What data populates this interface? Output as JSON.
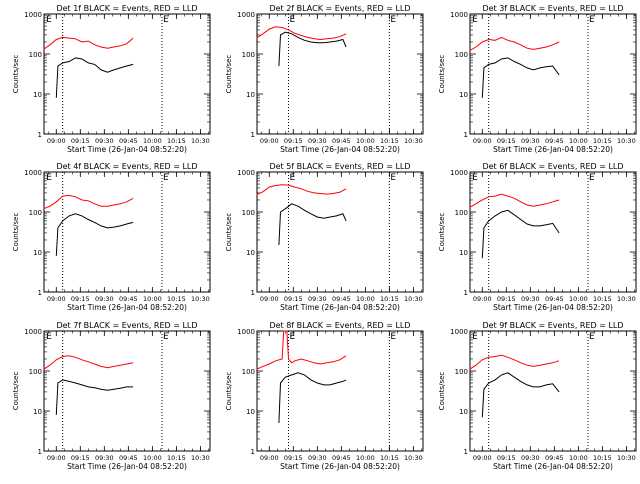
{
  "chart_data": [
    {
      "type": "line",
      "title": "Det 1f BLACK = Events, RED = LLD",
      "xlabel": "Start Time (26-Jan-04 08:52:20)",
      "ylabel": "Counts/sec",
      "ylim": [
        1,
        1000
      ],
      "yscale": "log",
      "yticks": [
        "1",
        "10",
        "100",
        "1000"
      ],
      "xticks": [
        "09:00",
        "09:15",
        "09:30",
        "09:45",
        "10:00",
        "10:15",
        "10:30"
      ],
      "xlim": [
        "08:52:20",
        "10:36:00"
      ],
      "vlines": [
        "09:04",
        "10:06"
      ],
      "markers": [
        {
          "label": "E",
          "x": "08:53"
        },
        {
          "label": "E",
          "x": "10:06"
        }
      ],
      "series": [
        {
          "color": "#ff0000",
          "x": [
            "08:52",
            "08:56",
            "09:00",
            "09:04",
            "09:08",
            "09:12",
            "09:16",
            "09:20",
            "09:24",
            "09:28",
            "09:32",
            "09:36",
            "09:40",
            "09:44",
            "09:48"
          ],
          "values": [
            130,
            170,
            230,
            260,
            250,
            240,
            200,
            210,
            170,
            150,
            140,
            150,
            160,
            180,
            250
          ]
        },
        {
          "color": "#000000",
          "x": [
            "09:00",
            "09:01",
            "09:04",
            "09:08",
            "09:12",
            "09:16",
            "09:20",
            "09:24",
            "09:28",
            "09:32",
            "09:36",
            "09:40",
            "09:44",
            "09:48"
          ],
          "values": [
            8,
            50,
            60,
            65,
            80,
            75,
            60,
            55,
            40,
            35,
            40,
            45,
            50,
            55
          ]
        }
      ]
    },
    {
      "type": "line",
      "title": "Det 2f BLACK = Events, RED = LLD",
      "xlabel": "Start Time (26-Jan-04 08:52:20)",
      "ylabel": "Counts/sec",
      "ylim": [
        1,
        1000
      ],
      "yscale": "log",
      "yticks": [
        "1",
        "10",
        "100",
        "1000"
      ],
      "xticks": [
        "09:00",
        "09:15",
        "09:30",
        "09:45",
        "10:00",
        "10:15",
        "10:30"
      ],
      "xlim": [
        "08:52:20",
        "10:36:00"
      ],
      "vlines": [
        "09:12",
        "10:15"
      ],
      "markers": [
        {
          "label": "E",
          "x": "09:12"
        },
        {
          "label": "E",
          "x": "10:15"
        }
      ],
      "series": [
        {
          "color": "#ff0000",
          "x": [
            "08:52",
            "08:56",
            "09:00",
            "09:04",
            "09:08",
            "09:12",
            "09:16",
            "09:20",
            "09:24",
            "09:28",
            "09:32",
            "09:36",
            "09:40",
            "09:44",
            "09:48"
          ],
          "values": [
            250,
            320,
            420,
            480,
            460,
            400,
            330,
            290,
            260,
            240,
            230,
            240,
            250,
            270,
            320
          ]
        },
        {
          "color": "#000000",
          "x": [
            "09:06",
            "09:07",
            "09:10",
            "09:14",
            "09:18",
            "09:22",
            "09:26",
            "09:30",
            "09:34",
            "09:38",
            "09:42",
            "09:46",
            "09:48"
          ],
          "values": [
            50,
            300,
            350,
            320,
            260,
            220,
            200,
            190,
            190,
            200,
            210,
            230,
            150
          ]
        }
      ]
    },
    {
      "type": "line",
      "title": "Det 3f BLACK = Events, RED = LLD",
      "xlabel": "Start Time (26-Jan-04 08:52:20)",
      "ylabel": "Counts/sec",
      "ylim": [
        1,
        1000
      ],
      "yscale": "log",
      "yticks": [
        "1",
        "10",
        "100",
        "1000"
      ],
      "xticks": [
        "09:00",
        "09:15",
        "09:30",
        "09:45",
        "10:00",
        "10:15",
        "10:30"
      ],
      "xlim": [
        "08:52:20",
        "10:36:00"
      ],
      "vlines": [
        "09:04",
        "10:06"
      ],
      "markers": [
        {
          "label": "E",
          "x": "08:53"
        },
        {
          "label": "E",
          "x": "10:06"
        }
      ],
      "series": [
        {
          "color": "#ff0000",
          "x": [
            "08:52",
            "08:56",
            "09:00",
            "09:04",
            "09:08",
            "09:12",
            "09:16",
            "09:20",
            "09:24",
            "09:28",
            "09:32",
            "09:36",
            "09:40",
            "09:44",
            "09:48"
          ],
          "values": [
            120,
            150,
            200,
            230,
            220,
            260,
            220,
            200,
            170,
            140,
            130,
            140,
            150,
            170,
            200
          ]
        },
        {
          "color": "#000000",
          "x": [
            "09:00",
            "09:01",
            "09:04",
            "09:08",
            "09:12",
            "09:16",
            "09:20",
            "09:24",
            "09:28",
            "09:32",
            "09:36",
            "09:40",
            "09:44",
            "09:48"
          ],
          "values": [
            8,
            45,
            55,
            60,
            75,
            80,
            65,
            55,
            45,
            40,
            45,
            48,
            50,
            30
          ]
        }
      ]
    },
    {
      "type": "line",
      "title": "Det 4f BLACK = Events, RED = LLD",
      "xlabel": "Start Time (26-Jan-04 08:52:20)",
      "ylabel": "Counts/sec",
      "ylim": [
        1,
        1000
      ],
      "yscale": "log",
      "yticks": [
        "1",
        "10",
        "100",
        "1000"
      ],
      "xticks": [
        "09:00",
        "09:15",
        "09:30",
        "09:45",
        "10:00",
        "10:15",
        "10:30"
      ],
      "xlim": [
        "08:52:20",
        "10:36:00"
      ],
      "vlines": [
        "09:04",
        "10:06"
      ],
      "markers": [
        {
          "label": "E",
          "x": "08:53"
        },
        {
          "label": "E",
          "x": "10:06"
        }
      ],
      "series": [
        {
          "color": "#ff0000",
          "x": [
            "08:52",
            "08:56",
            "09:00",
            "09:04",
            "09:08",
            "09:12",
            "09:16",
            "09:20",
            "09:24",
            "09:28",
            "09:32",
            "09:36",
            "09:40",
            "09:44",
            "09:48"
          ],
          "values": [
            120,
            140,
            180,
            250,
            260,
            240,
            200,
            190,
            160,
            140,
            140,
            150,
            160,
            180,
            220
          ]
        },
        {
          "color": "#000000",
          "x": [
            "09:00",
            "09:01",
            "09:04",
            "09:08",
            "09:12",
            "09:16",
            "09:20",
            "09:24",
            "09:28",
            "09:32",
            "09:36",
            "09:40",
            "09:44",
            "09:48"
          ],
          "values": [
            8,
            40,
            60,
            80,
            90,
            80,
            65,
            55,
            45,
            40,
            42,
            45,
            50,
            55
          ]
        }
      ]
    },
    {
      "type": "line",
      "title": "Det 5f BLACK = Events, RED = LLD",
      "xlabel": "Start Time (26-Jan-04 08:52:20)",
      "ylabel": "Counts/sec",
      "ylim": [
        1,
        1000
      ],
      "yscale": "log",
      "yticks": [
        "1",
        "10",
        "100",
        "1000"
      ],
      "xticks": [
        "09:00",
        "09:15",
        "09:30",
        "09:45",
        "10:00",
        "10:15",
        "10:30"
      ],
      "xlim": [
        "08:52:20",
        "10:36:00"
      ],
      "vlines": [
        "09:12",
        "10:15"
      ],
      "markers": [
        {
          "label": "E",
          "x": "09:12"
        },
        {
          "label": "E",
          "x": "10:15"
        }
      ],
      "series": [
        {
          "color": "#ff0000",
          "x": [
            "08:52",
            "08:56",
            "09:00",
            "09:04",
            "09:08",
            "09:12",
            "09:16",
            "09:20",
            "09:24",
            "09:28",
            "09:32",
            "09:36",
            "09:40",
            "09:44",
            "09:48"
          ],
          "values": [
            270,
            320,
            420,
            460,
            480,
            470,
            420,
            380,
            330,
            300,
            290,
            280,
            290,
            310,
            380
          ]
        },
        {
          "color": "#000000",
          "x": [
            "09:06",
            "09:07",
            "09:10",
            "09:14",
            "09:18",
            "09:22",
            "09:26",
            "09:30",
            "09:34",
            "09:38",
            "09:42",
            "09:46",
            "09:48"
          ],
          "values": [
            15,
            100,
            120,
            160,
            140,
            110,
            90,
            75,
            70,
            75,
            80,
            90,
            60
          ]
        }
      ]
    },
    {
      "type": "line",
      "title": "Det 6f BLACK = Events, RED = LLD",
      "xlabel": "Start Time (26-Jan-04 08:52:20)",
      "ylabel": "Counts/sec",
      "ylim": [
        1,
        1000
      ],
      "yscale": "log",
      "yticks": [
        "1",
        "10",
        "100",
        "1000"
      ],
      "xticks": [
        "09:00",
        "09:15",
        "09:30",
        "09:45",
        "10:00",
        "10:15",
        "10:30"
      ],
      "xlim": [
        "08:52:20",
        "10:36:00"
      ],
      "vlines": [
        "09:04",
        "10:06"
      ],
      "markers": [
        {
          "label": "E",
          "x": "08:53"
        },
        {
          "label": "E",
          "x": "10:06"
        }
      ],
      "series": [
        {
          "color": "#ff0000",
          "x": [
            "08:52",
            "08:56",
            "09:00",
            "09:04",
            "09:08",
            "09:12",
            "09:16",
            "09:20",
            "09:24",
            "09:28",
            "09:32",
            "09:36",
            "09:40",
            "09:44",
            "09:48"
          ],
          "values": [
            130,
            160,
            200,
            240,
            250,
            280,
            250,
            220,
            180,
            150,
            140,
            150,
            160,
            180,
            200
          ]
        },
        {
          "color": "#000000",
          "x": [
            "09:00",
            "09:01",
            "09:04",
            "09:08",
            "09:12",
            "09:16",
            "09:20",
            "09:24",
            "09:28",
            "09:32",
            "09:36",
            "09:40",
            "09:44",
            "09:48"
          ],
          "values": [
            7,
            40,
            60,
            80,
            100,
            110,
            85,
            65,
            50,
            45,
            45,
            48,
            52,
            30
          ]
        }
      ]
    },
    {
      "type": "line",
      "title": "Det 7f BLACK = Events, RED = LLD",
      "xlabel": "Start Time (26-Jan-04 08:52:20)",
      "ylabel": "Counts/sec",
      "ylim": [
        1,
        1000
      ],
      "yscale": "log",
      "yticks": [
        "1",
        "10",
        "100",
        "1000"
      ],
      "xticks": [
        "09:00",
        "09:15",
        "09:30",
        "09:45",
        "10:00",
        "10:15",
        "10:30"
      ],
      "xlim": [
        "08:52:20",
        "10:36:00"
      ],
      "vlines": [
        "09:04",
        "10:06"
      ],
      "markers": [
        {
          "label": "E",
          "x": "08:53"
        },
        {
          "label": "E",
          "x": "10:06"
        }
      ],
      "series": [
        {
          "color": "#ff0000",
          "x": [
            "08:52",
            "08:56",
            "09:00",
            "09:04",
            "09:08",
            "09:12",
            "09:16",
            "09:20",
            "09:24",
            "09:28",
            "09:32",
            "09:36",
            "09:40",
            "09:44",
            "09:48"
          ],
          "values": [
            110,
            140,
            190,
            230,
            240,
            220,
            190,
            170,
            150,
            130,
            120,
            130,
            140,
            150,
            160
          ]
        },
        {
          "color": "#000000",
          "x": [
            "09:00",
            "09:01",
            "09:04",
            "09:08",
            "09:12",
            "09:16",
            "09:20",
            "09:24",
            "09:28",
            "09:32",
            "09:36",
            "09:40",
            "09:44",
            "09:48"
          ],
          "values": [
            8,
            50,
            60,
            55,
            50,
            45,
            40,
            38,
            35,
            33,
            35,
            37,
            40,
            40
          ]
        }
      ]
    },
    {
      "type": "line",
      "title": "Det 8f BLACK = Events, RED = LLD",
      "xlabel": "Start Time (26-Jan-04 08:52:20)",
      "ylabel": "Counts/sec",
      "ylim": [
        1,
        1000
      ],
      "yscale": "log",
      "yticks": [
        "1",
        "10",
        "100",
        "1000"
      ],
      "xticks": [
        "09:00",
        "09:15",
        "09:30",
        "09:45",
        "10:00",
        "10:15",
        "10:30"
      ],
      "xlim": [
        "08:52:20",
        "10:36:00"
      ],
      "vlines": [
        "09:12",
        "10:15"
      ],
      "markers": [
        {
          "label": "E",
          "x": "09:12"
        },
        {
          "label": "E",
          "x": "10:15"
        }
      ],
      "series": [
        {
          "color": "#ff0000",
          "x": [
            "08:52",
            "08:56",
            "09:00",
            "09:04",
            "09:08",
            "09:09",
            "09:11",
            "09:12",
            "09:14",
            "09:16",
            "09:20",
            "09:24",
            "09:28",
            "09:32",
            "09:36",
            "09:40",
            "09:44",
            "09:48"
          ],
          "values": [
            110,
            130,
            150,
            180,
            200,
            1000,
            1000,
            200,
            160,
            180,
            200,
            180,
            160,
            150,
            160,
            170,
            190,
            240
          ]
        },
        {
          "color": "#000000",
          "x": [
            "09:06",
            "09:07",
            "09:10",
            "09:14",
            "09:18",
            "09:22",
            "09:26",
            "09:30",
            "09:34",
            "09:38",
            "09:42",
            "09:46",
            "09:48"
          ],
          "values": [
            5,
            50,
            70,
            80,
            90,
            80,
            60,
            50,
            45,
            45,
            50,
            55,
            60
          ]
        }
      ]
    },
    {
      "type": "line",
      "title": "Det 9f BLACK = Events, RED = LLD",
      "xlabel": "Start Time (26-Jan-04 08:52:20)",
      "ylabel": "Counts/sec",
      "ylim": [
        1,
        1000
      ],
      "yscale": "log",
      "yticks": [
        "1",
        "10",
        "100",
        "1000"
      ],
      "xticks": [
        "09:00",
        "09:15",
        "09:30",
        "09:45",
        "10:00",
        "10:15",
        "10:30"
      ],
      "xlim": [
        "08:52:20",
        "10:36:00"
      ],
      "vlines": [
        "09:04",
        "10:06"
      ],
      "markers": [
        {
          "label": "E",
          "x": "08:53"
        },
        {
          "label": "E",
          "x": "10:06"
        }
      ],
      "series": [
        {
          "color": "#ff0000",
          "x": [
            "08:52",
            "08:56",
            "09:00",
            "09:04",
            "09:08",
            "09:12",
            "09:16",
            "09:20",
            "09:24",
            "09:28",
            "09:32",
            "09:36",
            "09:40",
            "09:44",
            "09:48"
          ],
          "values": [
            110,
            140,
            190,
            220,
            230,
            250,
            220,
            190,
            160,
            140,
            130,
            140,
            150,
            160,
            180
          ]
        },
        {
          "color": "#000000",
          "x": [
            "09:00",
            "09:01",
            "09:04",
            "09:08",
            "09:12",
            "09:16",
            "09:20",
            "09:24",
            "09:28",
            "09:32",
            "09:36",
            "09:40",
            "09:44",
            "09:48"
          ],
          "values": [
            7,
            35,
            50,
            60,
            80,
            90,
            70,
            55,
            45,
            40,
            40,
            45,
            48,
            30
          ]
        }
      ]
    }
  ]
}
